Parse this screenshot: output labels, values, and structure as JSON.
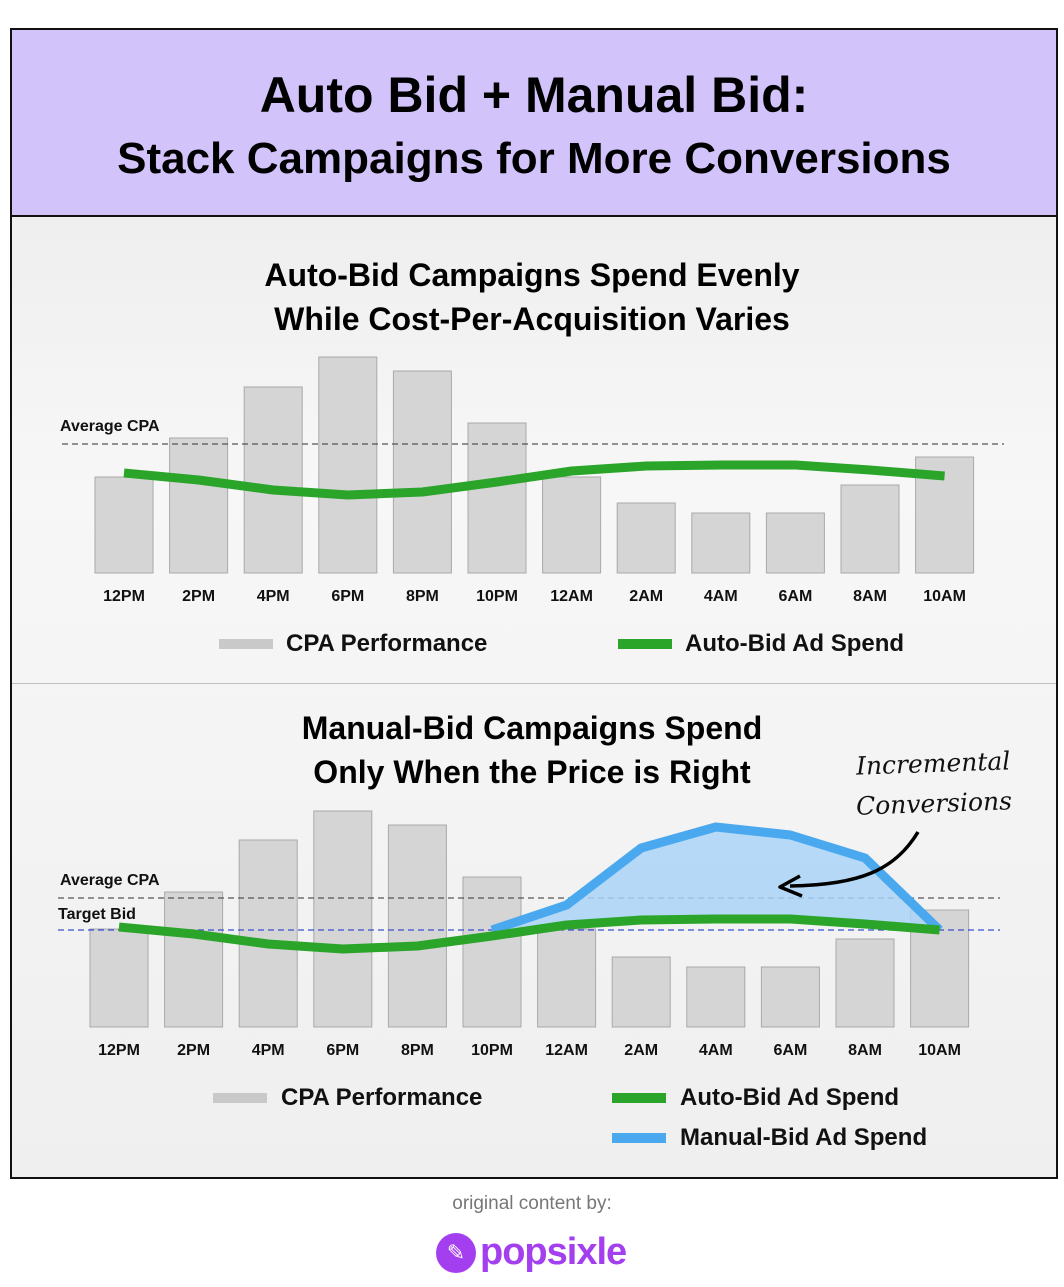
{
  "header": {
    "line1": "Auto Bid + Manual Bid:",
    "line2": "Stack Campaigns for More Conversions"
  },
  "chart_data": [
    {
      "type": "bar",
      "title": [
        "Auto-Bid Campaigns Spend Evenly",
        "While Cost-Per-Acquisition Varies"
      ],
      "categories": [
        "12PM",
        "2PM",
        "4PM",
        "6PM",
        "8PM",
        "10PM",
        "12AM",
        "2AM",
        "4AM",
        "6AM",
        "8AM",
        "10AM"
      ],
      "series": [
        {
          "name": "CPA Performance",
          "type": "bar",
          "color": "#d5d5d5",
          "values": [
            96,
            135,
            186,
            216,
            202,
            150,
            96,
            70,
            60,
            60,
            88,
            116
          ]
        },
        {
          "name": "Auto-Bid Ad Spend",
          "type": "line",
          "color": "#2aa52a",
          "values": [
            100,
            93,
            83,
            78,
            81,
            91,
            102,
            107,
            108,
            108,
            103,
            97
          ]
        }
      ],
      "reference_lines": [
        {
          "label": "Average CPA",
          "value": 129,
          "color": "#555555"
        }
      ],
      "ylim": [
        0,
        230
      ],
      "legend": "bottom"
    },
    {
      "type": "bar",
      "title": [
        "Manual-Bid Campaigns Spend",
        "Only When the Price is Right"
      ],
      "categories": [
        "12PM",
        "2PM",
        "4PM",
        "6PM",
        "8PM",
        "10PM",
        "12AM",
        "2AM",
        "4AM",
        "6AM",
        "8AM",
        "10AM"
      ],
      "series": [
        {
          "name": "CPA Performance",
          "type": "bar",
          "color": "#d5d5d5",
          "values": [
            98,
            135,
            187,
            216,
            202,
            150,
            98,
            70,
            60,
            60,
            88,
            117
          ]
        },
        {
          "name": "Auto-Bid Ad Spend",
          "type": "line",
          "color": "#2aa52a",
          "values": [
            100,
            93,
            83,
            78,
            81,
            91,
            102,
            107,
            108,
            108,
            103,
            97
          ]
        },
        {
          "name": "Manual-Bid Ad Spend",
          "type": "area",
          "color": "#4aa8ef",
          "values": [
            null,
            null,
            null,
            null,
            null,
            97,
            122,
            179,
            200,
            192,
            169,
            97
          ]
        }
      ],
      "reference_lines": [
        {
          "label": "Average CPA",
          "value": 129,
          "color": "#555555"
        },
        {
          "label": "Target Bid",
          "value": 97,
          "color": "#3a4fd0"
        }
      ],
      "annotation": [
        "Incremental",
        "Conversions"
      ],
      "ylim": [
        0,
        230
      ],
      "legend": "bottom"
    }
  ],
  "footer": {
    "credit": "original content by:",
    "brand": "popsixle"
  }
}
